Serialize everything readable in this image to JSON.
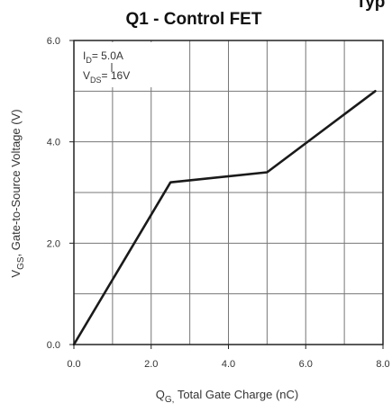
{
  "chart_data": {
    "type": "line",
    "title": "Q1 - Control FET",
    "title_fragment": "Typ",
    "xlabel": {
      "symbol": "Q",
      "sub": "G,",
      "text": " Total Gate Charge (nC)"
    },
    "ylabel": {
      "symbol": "V",
      "sub": "GS",
      "text": ",  Gate-to-Source Voltage (V)"
    },
    "xlim": [
      0.0,
      8.0
    ],
    "ylim": [
      0.0,
      6.0
    ],
    "x_ticks": [
      0.0,
      2.0,
      4.0,
      6.0,
      8.0
    ],
    "x_tick_labels": [
      "0.0",
      "2.0",
      "4.0",
      "6.0",
      "8.0"
    ],
    "y_ticks": [
      0.0,
      2.0,
      4.0,
      6.0
    ],
    "y_tick_labels": [
      "0.0",
      "2.0",
      "4.0",
      "6.0"
    ],
    "grid": true,
    "grid_x_step": 1.0,
    "grid_y_step": 1.0,
    "annotations": [
      {
        "symbol": "I",
        "sub": "D",
        "text": "= 5.0A"
      },
      {
        "symbol": "V",
        "sub": "DS",
        "text": "= 16V"
      }
    ],
    "series": [
      {
        "x": [
          0.0,
          2.5,
          5.0,
          7.8
        ],
        "y": [
          0.0,
          3.2,
          3.4,
          5.0
        ],
        "color": "#1a1a1a"
      }
    ]
  }
}
